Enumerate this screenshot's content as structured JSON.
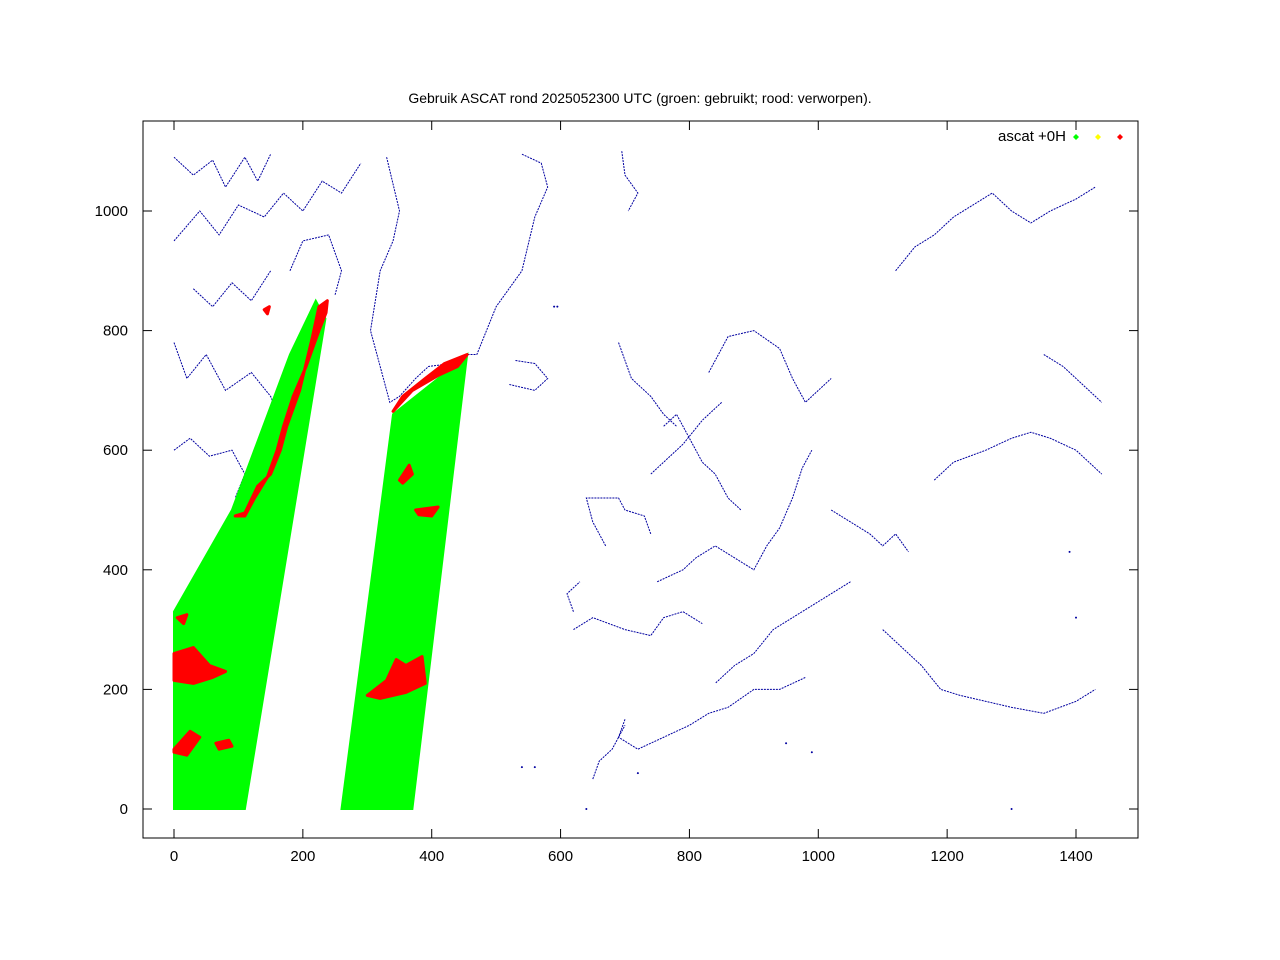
{
  "chart_data": {
    "type": "scatter",
    "title": "Gebruik ASCAT rond 2025052300 UTC (groen: gebruikt; rood: verworpen).",
    "xlabel": "",
    "ylabel": "",
    "xlim": [
      -50,
      1450
    ],
    "ylim": [
      -50,
      1100
    ],
    "x_ticks": [
      "0",
      "200",
      "400",
      "600",
      "800",
      "1000",
      "1200",
      "1400"
    ],
    "y_ticks": [
      "0",
      "200",
      "400",
      "600",
      "800",
      "1000"
    ],
    "x_tick_values": [
      0,
      200,
      400,
      600,
      800,
      1000,
      1200,
      1400
    ],
    "y_tick_values": [
      0,
      200,
      400,
      600,
      800,
      1000
    ],
    "grid": false,
    "legend_position": "top-right",
    "legend": {
      "label": "ascat +0H",
      "markers": [
        {
          "name": "gebruikt",
          "color": "#00ff00"
        },
        {
          "name": "onbekend",
          "color": "#ffff00"
        },
        {
          "name": "verworpen",
          "color": "#ff0000"
        }
      ]
    },
    "series": [
      {
        "name": "",
        "color": "#00ff00",
        "swaths": [
          {
            "polygon": [
              [
                0,
                0
              ],
              [
                110,
                0
              ],
              [
                235,
                820
              ],
              [
                220,
                850
              ],
              [
                180,
                760
              ],
              [
                90,
                500
              ],
              [
                0,
                330
              ]
            ]
          },
          {
            "polygon": [
              [
                260,
                0
              ],
              [
                370,
                0
              ],
              [
                455,
                760
              ],
              [
                410,
                720
              ],
              [
                340,
                660
              ]
            ]
          }
        ]
      },
      {
        "name": "",
        "color": "#ff0000",
        "patches": [
          {
            "polygon": [
              [
                95,
                490
              ],
              [
                110,
                495
              ],
              [
                130,
                540
              ],
              [
                150,
                560
              ],
              [
                165,
                600
              ],
              [
                175,
                640
              ],
              [
                195,
                700
              ],
              [
                215,
                790
              ],
              [
                225,
                840
              ],
              [
                238,
                850
              ],
              [
                236,
                830
              ],
              [
                225,
                800
              ],
              [
                205,
                740
              ],
              [
                185,
                690
              ],
              [
                170,
                640
              ],
              [
                160,
                600
              ],
              [
                145,
                555
              ],
              [
                125,
                520
              ],
              [
                110,
                490
              ]
            ]
          },
          {
            "polygon": [
              [
                0,
                260
              ],
              [
                30,
                270
              ],
              [
                55,
                240
              ],
              [
                80,
                230
              ],
              [
                60,
                220
              ],
              [
                30,
                210
              ],
              [
                0,
                215
              ]
            ]
          },
          {
            "polygon": [
              [
                0,
                100
              ],
              [
                25,
                130
              ],
              [
                40,
                120
              ],
              [
                20,
                90
              ],
              [
                0,
                95
              ]
            ]
          },
          {
            "polygon": [
              [
                65,
                110
              ],
              [
                85,
                115
              ],
              [
                90,
                105
              ],
              [
                70,
                100
              ]
            ]
          },
          {
            "polygon": [
              [
                5,
                320
              ],
              [
                20,
                325
              ],
              [
                15,
                310
              ]
            ]
          },
          {
            "polygon": [
              [
                300,
                190
              ],
              [
                330,
                215
              ],
              [
                345,
                250
              ],
              [
                360,
                240
              ],
              [
                385,
                255
              ],
              [
                390,
                210
              ],
              [
                360,
                195
              ],
              [
                320,
                185
              ]
            ]
          },
          {
            "polygon": [
              [
                350,
                550
              ],
              [
                365,
                575
              ],
              [
                370,
                560
              ],
              [
                355,
                545
              ]
            ]
          },
          {
            "polygon": [
              [
                375,
                500
              ],
              [
                410,
                505
              ],
              [
                400,
                490
              ],
              [
                380,
                492
              ]
            ]
          },
          {
            "polygon": [
              [
                340,
                665
              ],
              [
                370,
                700
              ],
              [
                410,
                725
              ],
              [
                440,
                740
              ],
              [
                455,
                760
              ],
              [
                420,
                745
              ],
              [
                390,
                720
              ],
              [
                355,
                690
              ]
            ]
          },
          {
            "polygon": [
              [
                140,
                835
              ],
              [
                148,
                840
              ],
              [
                145,
                828
              ]
            ]
          }
        ]
      }
    ],
    "coastline": {
      "color": "#0000a0",
      "lines": [
        [
          [
            0,
            1090
          ],
          [
            30,
            1060
          ],
          [
            60,
            1085
          ],
          [
            80,
            1040
          ],
          [
            110,
            1090
          ],
          [
            130,
            1050
          ],
          [
            150,
            1095
          ]
        ],
        [
          [
            0,
            950
          ],
          [
            40,
            1000
          ],
          [
            70,
            960
          ],
          [
            100,
            1010
          ],
          [
            140,
            990
          ],
          [
            170,
            1030
          ],
          [
            200,
            1000
          ],
          [
            230,
            1050
          ],
          [
            260,
            1030
          ],
          [
            290,
            1080
          ]
        ],
        [
          [
            0,
            780
          ],
          [
            20,
            720
          ],
          [
            50,
            760
          ],
          [
            80,
            700
          ],
          [
            120,
            730
          ],
          [
            150,
            690
          ],
          [
            170,
            640
          ],
          [
            160,
            600
          ],
          [
            140,
            570
          ],
          [
            120,
            520
          ],
          [
            95,
            505
          ]
        ],
        [
          [
            0,
            600
          ],
          [
            25,
            620
          ],
          [
            55,
            590
          ],
          [
            90,
            600
          ],
          [
            110,
            560
          ],
          [
            95,
            520
          ]
        ],
        [
          [
            30,
            870
          ],
          [
            60,
            840
          ],
          [
            90,
            880
          ],
          [
            120,
            850
          ],
          [
            150,
            900
          ]
        ],
        [
          [
            180,
            900
          ],
          [
            200,
            950
          ],
          [
            240,
            960
          ],
          [
            260,
            900
          ],
          [
            250,
            860
          ]
        ],
        [
          [
            330,
            1090
          ],
          [
            350,
            1000
          ],
          [
            340,
            950
          ],
          [
            320,
            900
          ],
          [
            305,
            800
          ],
          [
            320,
            740
          ],
          [
            335,
            680
          ],
          [
            350,
            690
          ],
          [
            375,
            720
          ],
          [
            395,
            740
          ],
          [
            430,
            745
          ],
          [
            455,
            760
          ],
          [
            470,
            760
          ],
          [
            500,
            840
          ],
          [
            540,
            900
          ],
          [
            560,
            990
          ],
          [
            580,
            1040
          ],
          [
            570,
            1080
          ],
          [
            540,
            1095
          ]
        ],
        [
          [
            530,
            750
          ],
          [
            560,
            745
          ],
          [
            580,
            720
          ],
          [
            560,
            700
          ],
          [
            520,
            710
          ]
        ],
        [
          [
            695,
            1100
          ],
          [
            700,
            1060
          ],
          [
            720,
            1030
          ],
          [
            705,
            1000
          ]
        ],
        [
          [
            670,
            440
          ],
          [
            650,
            480
          ],
          [
            640,
            520
          ],
          [
            690,
            520
          ],
          [
            700,
            500
          ],
          [
            730,
            490
          ],
          [
            740,
            460
          ]
        ],
        [
          [
            620,
            330
          ],
          [
            610,
            360
          ],
          [
            630,
            380
          ]
        ],
        [
          [
            620,
            300
          ],
          [
            650,
            320
          ],
          [
            700,
            300
          ],
          [
            740,
            290
          ],
          [
            760,
            320
          ],
          [
            790,
            330
          ],
          [
            820,
            310
          ]
        ],
        [
          [
            750,
            380
          ],
          [
            790,
            400
          ],
          [
            810,
            420
          ],
          [
            840,
            440
          ],
          [
            870,
            420
          ],
          [
            900,
            400
          ],
          [
            920,
            440
          ],
          [
            940,
            470
          ],
          [
            960,
            520
          ],
          [
            975,
            570
          ],
          [
            990,
            600
          ]
        ],
        [
          [
            830,
            730
          ],
          [
            860,
            790
          ],
          [
            900,
            800
          ],
          [
            940,
            770
          ],
          [
            960,
            720
          ],
          [
            980,
            680
          ],
          [
            1000,
            700
          ],
          [
            1020,
            720
          ]
        ],
        [
          [
            850,
            680
          ],
          [
            820,
            650
          ],
          [
            790,
            610
          ],
          [
            760,
            580
          ],
          [
            740,
            560
          ]
        ],
        [
          [
            1020,
            500
          ],
          [
            1050,
            480
          ],
          [
            1080,
            460
          ],
          [
            1100,
            440
          ],
          [
            1120,
            460
          ],
          [
            1140,
            430
          ]
        ],
        [
          [
            1050,
            380
          ],
          [
            1020,
            360
          ],
          [
            990,
            340
          ],
          [
            960,
            320
          ],
          [
            930,
            300
          ],
          [
            900,
            260
          ],
          [
            870,
            240
          ],
          [
            840,
            210
          ]
        ],
        [
          [
            1100,
            300
          ],
          [
            1120,
            280
          ],
          [
            1140,
            260
          ],
          [
            1160,
            240
          ],
          [
            1190,
            200
          ],
          [
            1220,
            190
          ],
          [
            1260,
            180
          ],
          [
            1300,
            170
          ],
          [
            1350,
            160
          ],
          [
            1400,
            180
          ],
          [
            1430,
            200
          ]
        ],
        [
          [
            1180,
            550
          ],
          [
            1210,
            580
          ],
          [
            1260,
            600
          ],
          [
            1300,
            620
          ],
          [
            1330,
            630
          ],
          [
            1360,
            620
          ],
          [
            1400,
            600
          ],
          [
            1420,
            580
          ],
          [
            1440,
            560
          ]
        ],
        [
          [
            1120,
            900
          ],
          [
            1150,
            940
          ],
          [
            1180,
            960
          ],
          [
            1210,
            990
          ],
          [
            1240,
            1010
          ],
          [
            1270,
            1030
          ],
          [
            1300,
            1000
          ],
          [
            1330,
            980
          ],
          [
            1360,
            1000
          ],
          [
            1400,
            1020
          ],
          [
            1430,
            1040
          ]
        ],
        [
          [
            1350,
            760
          ],
          [
            1380,
            740
          ],
          [
            1400,
            720
          ],
          [
            1420,
            700
          ],
          [
            1440,
            680
          ]
        ],
        [
          [
            760,
            640
          ],
          [
            780,
            660
          ],
          [
            800,
            620
          ],
          [
            820,
            580
          ],
          [
            840,
            560
          ],
          [
            860,
            520
          ],
          [
            880,
            500
          ]
        ],
        [
          [
            690,
            780
          ],
          [
            710,
            720
          ],
          [
            740,
            690
          ],
          [
            760,
            660
          ],
          [
            780,
            640
          ]
        ],
        [
          [
            700,
            150
          ],
          [
            690,
            120
          ],
          [
            720,
            100
          ],
          [
            760,
            120
          ],
          [
            800,
            140
          ],
          [
            830,
            160
          ],
          [
            860,
            170
          ],
          [
            900,
            200
          ],
          [
            940,
            200
          ],
          [
            980,
            220
          ]
        ],
        [
          [
            650,
            50
          ],
          [
            660,
            80
          ],
          [
            680,
            100
          ],
          [
            700,
            140
          ]
        ]
      ],
      "dots": [
        [
          590,
          840
        ],
        [
          595,
          840
        ],
        [
          640,
          0
        ],
        [
          1300,
          0
        ],
        [
          1400,
          320
        ],
        [
          1390,
          430
        ],
        [
          990,
          95
        ],
        [
          950,
          110
        ],
        [
          720,
          60
        ],
        [
          560,
          70
        ],
        [
          540,
          70
        ]
      ]
    }
  }
}
